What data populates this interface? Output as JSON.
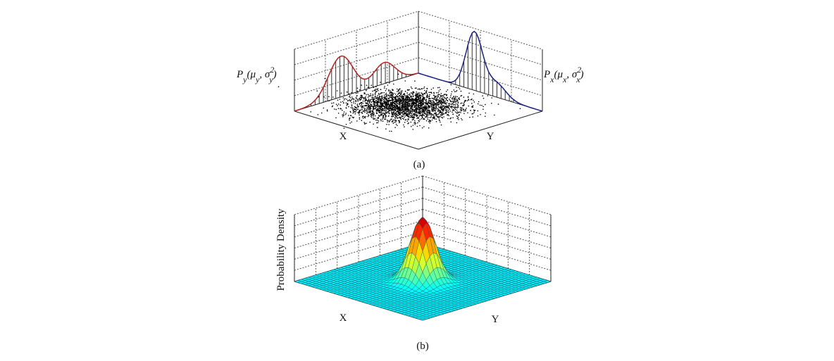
{
  "panel_a": {
    "py_label": [
      {
        "text": "P"
      },
      {
        "text": "y",
        "shift": "sub"
      },
      {
        "text": "("
      },
      {
        "text": "μ"
      },
      {
        "text": "y",
        "shift": "sub"
      },
      {
        "text": ", "
      },
      {
        "text": "σ"
      },
      {
        "text": "2",
        "shift": "super"
      },
      {
        "text": "y",
        "shift": "sub-under"
      },
      {
        "text": ")"
      }
    ],
    "px_label": [
      {
        "text": "P"
      },
      {
        "text": "x",
        "shift": "sub"
      },
      {
        "text": "("
      },
      {
        "text": "μ"
      },
      {
        "text": "x",
        "shift": "sub"
      },
      {
        "text": ", "
      },
      {
        "text": "σ"
      },
      {
        "text": "2",
        "shift": "super"
      },
      {
        "text": "x",
        "shift": "sub-under"
      },
      {
        "text": ")"
      }
    ],
    "x_label": "X",
    "y_label": "Y",
    "caption": "(a)"
  },
  "panel_b": {
    "z_label": "Probability Density",
    "x_label": "X",
    "y_label": "Y",
    "caption": "(b)"
  }
}
